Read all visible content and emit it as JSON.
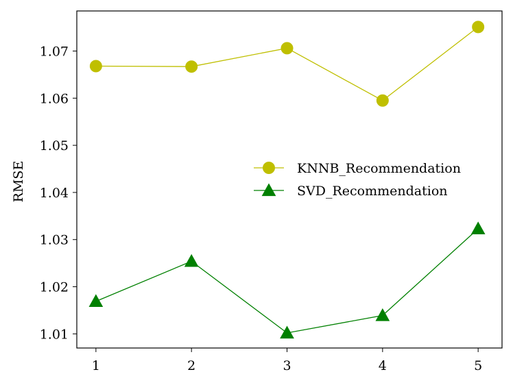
{
  "chart_data": {
    "type": "line",
    "title": "",
    "xlabel": "",
    "ylabel": "RMSE",
    "x": [
      1,
      2,
      3,
      4,
      5
    ],
    "xlim": [
      0.8,
      5.25
    ],
    "ylim": [
      1.007,
      1.0785
    ],
    "xticks": [
      "1",
      "2",
      "3",
      "4",
      "5"
    ],
    "yticks": [
      "1.01",
      "1.02",
      "1.03",
      "1.04",
      "1.05",
      "1.06",
      "1.07"
    ],
    "grid": false,
    "legend_position": "center-right",
    "series": [
      {
        "name": "KNNB_Recommendation",
        "values": [
          1.0668,
          1.0667,
          1.0706,
          1.0595,
          1.0751
        ],
        "color": "#bfbf00",
        "marker": "circle"
      },
      {
        "name": "SVD_Recommendation",
        "values": [
          1.0169,
          1.0254,
          1.0102,
          1.0139,
          1.0323
        ],
        "color": "#008000",
        "marker": "triangle"
      }
    ]
  }
}
